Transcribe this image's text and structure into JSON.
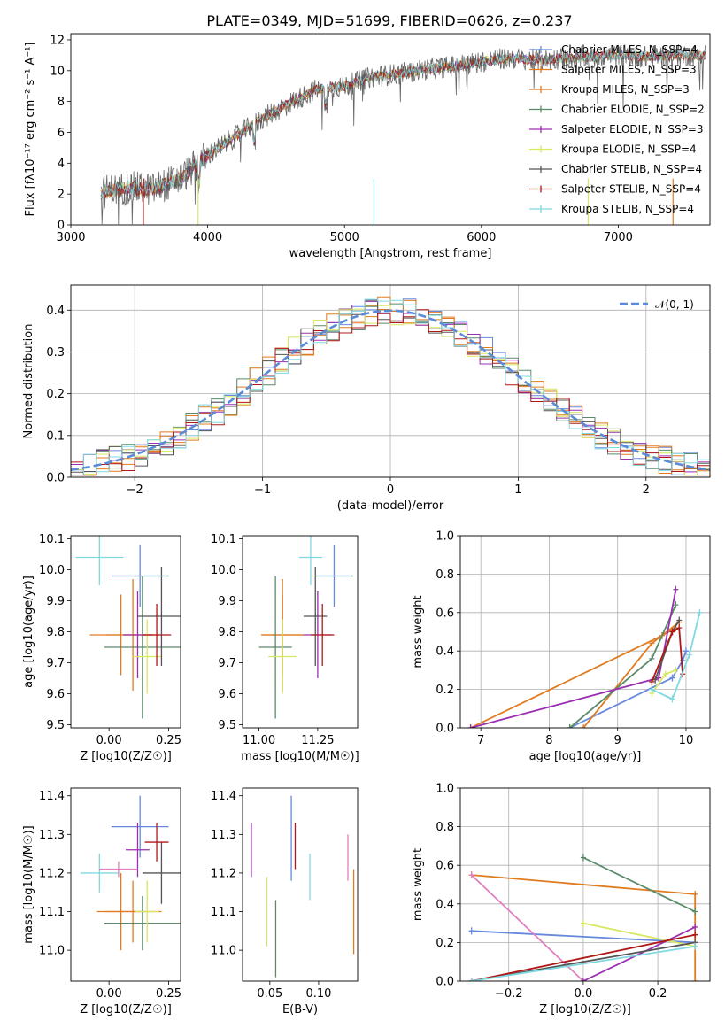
{
  "title": "PLATE=0349, MJD=51699, FIBERID=0626, z=0.237",
  "colors": {
    "Chabrier MILES": "#6688dd",
    "Salpeter MILES": "#e07b20",
    "Kroupa MILES": "#e07b20",
    "Chabrier ELODIE": "#5a8a6a",
    "Salpeter ELODIE": "#9a30b0",
    "Kroupa ELODIE": "#d8e860",
    "Chabrier STELIB": "#555555",
    "Salpeter STELIB": "#b01818",
    "Kroupa STELIB": "#80d8e0"
  },
  "chart_data": [
    {
      "id": "spectrum",
      "type": "line",
      "xlabel": "wavelength [Angstrom, rest frame]",
      "ylabel": "Flux [fλ10⁻¹⁷ erg cm⁻² s⁻¹ A⁻¹]",
      "xlim": [
        3000,
        7670
      ],
      "ylim": [
        0,
        12.4
      ],
      "xticks": [
        "3000",
        "4000",
        "5000",
        "6000",
        "7000"
      ],
      "yticks": [
        "0",
        "2",
        "4",
        "6",
        "8",
        "10",
        "12"
      ],
      "legend_position": "top-right",
      "legend": [
        "Chabrier MILES, N_SSP=4",
        "Salpeter MILES, N_SSP=3",
        "Kroupa MILES, N_SSP=3",
        "Chabrier ELODIE, N_SSP=2",
        "Salpeter ELODIE, N_SSP=3",
        "Kroupa ELODIE, N_SSP=4",
        "Chabrier STELIB, N_SSP=4",
        "Salpeter STELIB, N_SSP=4",
        "Kroupa STELIB, N_SSP=4"
      ],
      "continuum": {
        "x": [
          3220,
          3400,
          3600,
          3800,
          4000,
          4200,
          4400,
          4600,
          4800,
          5000,
          5200,
          5400,
          5600,
          5800,
          6000,
          6200,
          6400,
          6600,
          6800,
          7000,
          7200,
          7400
        ],
        "y": [
          2.1,
          2.4,
          2.3,
          3.0,
          4.5,
          5.7,
          6.9,
          7.9,
          8.8,
          9.0,
          9.6,
          9.8,
          10.1,
          10.3,
          10.6,
          10.8,
          10.7,
          10.8,
          10.9,
          11.0,
          10.9,
          11.0
        ]
      }
    },
    {
      "id": "residuals",
      "type": "bar",
      "xlabel": "(data-model)/error",
      "ylabel": "Normed distribution",
      "xlim": [
        -2.5,
        2.5
      ],
      "ylim": [
        0,
        0.46
      ],
      "xticks": [
        "−2",
        "−1",
        "0",
        "1",
        "2"
      ],
      "yticks": [
        "0.0",
        "0.1",
        "0.2",
        "0.3",
        "0.4"
      ],
      "legend": [
        "𝒩(0, 1)"
      ],
      "legend_position": "top-right",
      "grid": true
    },
    {
      "id": "age-vs-Z",
      "type": "scatter",
      "xlabel": "Z [log10(Z/Z☉)]",
      "ylabel": "age [log10(age/yr)]",
      "xlim": [
        -0.16,
        0.3
      ],
      "ylim": [
        9.49,
        10.11
      ],
      "xticks": [
        "0.00",
        "0.25"
      ],
      "yticks": [
        "9.5",
        "9.6",
        "9.7",
        "9.8",
        "9.9",
        "10.0",
        "10.1"
      ],
      "series": [
        {
          "name": "Chabrier MILES",
          "x": 0.13,
          "y": 9.98,
          "xerr": 0.12,
          "yerr": 0.1
        },
        {
          "name": "Salpeter MILES",
          "x": 0.1,
          "y": 9.79,
          "xerr": 0.11,
          "yerr": 0.18
        },
        {
          "name": "Kroupa MILES",
          "x": 0.05,
          "y": 9.79,
          "xerr": 0.13,
          "yerr": 0.13
        },
        {
          "name": "Chabrier ELODIE",
          "x": 0.14,
          "y": 9.75,
          "xerr": 0.16,
          "yerr": 0.23
        },
        {
          "name": "Salpeter ELODIE",
          "x": 0.12,
          "y": 9.79,
          "xerr": 0.06,
          "yerr": 0.14
        },
        {
          "name": "Kroupa ELODIE",
          "x": 0.16,
          "y": 9.72,
          "xerr": 0.06,
          "yerr": 0.12
        },
        {
          "name": "Chabrier STELIB",
          "x": 0.22,
          "y": 9.85,
          "xerr": 0.1,
          "yerr": 0.16
        },
        {
          "name": "Salpeter STELIB",
          "x": 0.2,
          "y": 9.79,
          "xerr": 0.06,
          "yerr": 0.1
        },
        {
          "name": "Kroupa STELIB",
          "x": -0.04,
          "y": 10.04,
          "xerr": 0.1,
          "yerr": 0.09
        }
      ]
    },
    {
      "id": "age-vs-mass",
      "type": "scatter",
      "xlabel": "mass [log10(M/M☉)]",
      "ylabel": "",
      "xlim": [
        10.93,
        11.42
      ],
      "ylim": [
        9.49,
        10.11
      ],
      "xticks": [
        "11.00",
        "11.25"
      ],
      "yticks": [
        "9.5",
        "9.6",
        "9.7",
        "9.8",
        "9.9",
        "10.0",
        "10.1"
      ],
      "series": [
        {
          "name": "Chabrier MILES",
          "x": 11.32,
          "y": 9.98,
          "xerr": 0.08,
          "yerr": 0.1
        },
        {
          "name": "Salpeter MILES",
          "x": 11.1,
          "y": 9.79,
          "xerr": 0.09,
          "yerr": 0.18
        },
        {
          "name": "Kroupa MILES",
          "x": 11.1,
          "y": 9.79,
          "xerr": 0.09,
          "yerr": 0.13
        },
        {
          "name": "Chabrier ELODIE",
          "x": 11.07,
          "y": 9.75,
          "xerr": 0.07,
          "yerr": 0.23
        },
        {
          "name": "Salpeter ELODIE",
          "x": 11.25,
          "y": 9.79,
          "xerr": 0.06,
          "yerr": 0.14
        },
        {
          "name": "Kroupa ELODIE",
          "x": 11.1,
          "y": 9.72,
          "xerr": 0.06,
          "yerr": 0.12
        },
        {
          "name": "Chabrier STELIB",
          "x": 11.24,
          "y": 9.85,
          "xerr": 0.05,
          "yerr": 0.16
        },
        {
          "name": "Salpeter STELIB",
          "x": 11.27,
          "y": 9.79,
          "xerr": 0.05,
          "yerr": 0.1
        },
        {
          "name": "Kroupa STELIB",
          "x": 11.22,
          "y": 10.04,
          "xerr": 0.05,
          "yerr": 0.09
        }
      ]
    },
    {
      "id": "mass-weight-vs-age",
      "type": "line",
      "xlabel": "age [log10(age/yr)]",
      "ylabel": "mass weight",
      "xlim": [
        6.7,
        10.35
      ],
      "ylim": [
        0,
        1.0
      ],
      "xticks": [
        "7",
        "8",
        "9",
        "10"
      ],
      "yticks": [
        "0.0",
        "0.2",
        "0.4",
        "0.6",
        "0.8",
        "1.0"
      ],
      "grid": true,
      "series": [
        {
          "name": "Chabrier MILES",
          "x": [
            8.3,
            9.8,
            9.95,
            10.0
          ],
          "y": [
            0.0,
            0.26,
            0.35,
            0.4
          ]
        },
        {
          "name": "Salpeter MILES",
          "x": [
            8.5,
            9.5,
            9.9
          ],
          "y": [
            0.0,
            0.44,
            0.55
          ]
        },
        {
          "name": "Kroupa MILES",
          "x": [
            6.85,
            9.65,
            9.85
          ],
          "y": [
            0.0,
            0.48,
            0.52
          ]
        },
        {
          "name": "Chabrier ELODIE",
          "x": [
            8.3,
            9.5,
            9.85
          ],
          "y": [
            0.0,
            0.36,
            0.64
          ]
        },
        {
          "name": "Salpeter ELODIE",
          "x": [
            6.85,
            9.6,
            9.85
          ],
          "y": [
            0.0,
            0.26,
            0.72
          ]
        },
        {
          "name": "Kroupa ELODIE",
          "x": [
            9.5,
            9.7,
            9.85
          ],
          "y": [
            0.18,
            0.28,
            0.3
          ]
        },
        {
          "name": "Chabrier STELIB",
          "x": [
            9.55,
            9.8,
            9.9
          ],
          "y": [
            0.25,
            0.5,
            0.56
          ]
        },
        {
          "name": "Salpeter STELIB",
          "x": [
            9.5,
            9.8,
            9.9,
            9.95
          ],
          "y": [
            0.24,
            0.5,
            0.52,
            0.28
          ]
        },
        {
          "name": "Kroupa STELIB",
          "x": [
            9.5,
            9.8,
            10.05,
            10.2
          ],
          "y": [
            0.2,
            0.15,
            0.38,
            0.6
          ]
        }
      ]
    },
    {
      "id": "mass-vs-Z",
      "type": "scatter",
      "xlabel": "Z [log10(Z/Z☉)]",
      "ylabel": "mass [log10(M/M☉)]",
      "xlim": [
        -0.16,
        0.3
      ],
      "ylim": [
        10.92,
        11.42
      ],
      "xticks": [
        "0.00",
        "0.25"
      ],
      "yticks": [
        "11.0",
        "11.1",
        "11.2",
        "11.3",
        "11.4"
      ],
      "series": [
        {
          "name": "Chabrier MILES",
          "x": 0.13,
          "y": 11.32,
          "xerr": 0.12,
          "yerr": 0.08
        },
        {
          "name": "Salpeter MILES",
          "x": 0.05,
          "y": 11.1,
          "xerr": 0.1,
          "yerr": 0.1
        },
        {
          "name": "Kroupa MILES",
          "x": 0.1,
          "y": 11.1,
          "xerr": 0.12,
          "yerr": 0.08
        },
        {
          "name": "Chabrier ELODIE",
          "x": 0.14,
          "y": 11.07,
          "xerr": 0.16,
          "yerr": 0.07
        },
        {
          "name": "Salpeter ELODIE",
          "x": 0.12,
          "y": 11.26,
          "xerr": 0.05,
          "yerr": 0.07
        },
        {
          "name": "Kroupa ELODIE",
          "x": 0.16,
          "y": 11.1,
          "xerr": 0.05,
          "yerr": 0.08
        },
        {
          "name": "Chabrier STELIB",
          "x": 0.22,
          "y": 11.2,
          "xerr": 0.08,
          "yerr": 0.08
        },
        {
          "name": "Salpeter STELIB",
          "x": 0.2,
          "y": 11.28,
          "xerr": 0.05,
          "yerr": 0.05
        },
        {
          "name": "Kroupa STELIB",
          "x": -0.04,
          "y": 11.2,
          "xerr": 0.08,
          "yerr": 0.05
        },
        {
          "name": "pink",
          "x": 0.04,
          "y": 11.21,
          "xerr": 0.08,
          "yerr": 0.02
        }
      ]
    },
    {
      "id": "mass-vs-EBV",
      "type": "scatter",
      "xlabel": "E(B-V)",
      "ylabel": "",
      "xlim": [
        0.022,
        0.14
      ],
      "ylim": [
        10.92,
        11.42
      ],
      "xticks": [
        "0.05",
        "0.10"
      ],
      "yticks": [
        "11.0",
        "11.1",
        "11.2",
        "11.3",
        "11.4"
      ],
      "series": [
        {
          "name": "Salpeter ELODIE",
          "x": 0.031,
          "y": 11.26,
          "yerr": 0.07
        },
        {
          "name": "Kroupa ELODIE",
          "x": 0.047,
          "y": 11.1,
          "yerr": 0.09
        },
        {
          "name": "Chabrier ELODIE",
          "x": 0.056,
          "y": 11.03,
          "yerr": 0.1
        },
        {
          "name": "Chabrier MILES",
          "x": 0.072,
          "y": 11.29,
          "yerr": 0.11
        },
        {
          "name": "Salpeter STELIB",
          "x": 0.076,
          "y": 11.27,
          "yerr": 0.06
        },
        {
          "name": "Kroupa STELIB",
          "x": 0.091,
          "y": 11.19,
          "yerr": 0.06
        },
        {
          "name": "pink",
          "x": 0.13,
          "y": 11.24,
          "yerr": 0.06
        },
        {
          "name": "Salpeter MILES",
          "x": 0.136,
          "y": 11.1,
          "yerr": 0.11
        }
      ]
    },
    {
      "id": "mass-weight-vs-Z",
      "type": "line",
      "xlabel": "Z [log10(Z/Z☉)]",
      "ylabel": "mass weight",
      "xlim": [
        -0.33,
        0.34
      ],
      "ylim": [
        0,
        1.0
      ],
      "xticks": [
        "−0.2",
        "0.0",
        "0.2"
      ],
      "yticks": [
        "0.0",
        "0.2",
        "0.4",
        "0.6",
        "0.8",
        "1.0"
      ],
      "grid": true,
      "series": [
        {
          "name": "Chabrier MILES",
          "x": [
            -0.3,
            0.3
          ],
          "y": [
            0.26,
            0.2
          ]
        },
        {
          "name": "Salpeter MILES",
          "x": [
            -0.3,
            0.3,
            0.3
          ],
          "y": [
            0.55,
            0.45,
            0.0
          ]
        },
        {
          "name": "pink",
          "x": [
            -0.3,
            0.0
          ],
          "y": [
            0.55,
            0.0
          ]
        },
        {
          "name": "Chabrier ELODIE",
          "x": [
            0.0,
            0.3
          ],
          "y": [
            0.64,
            0.36
          ]
        },
        {
          "name": "Salpeter ELODIE",
          "x": [
            0.0,
            0.3
          ],
          "y": [
            0.0,
            0.28
          ]
        },
        {
          "name": "Kroupa ELODIE",
          "x": [
            0.0,
            0.3
          ],
          "y": [
            0.3,
            0.18
          ]
        },
        {
          "name": "Chabrier STELIB",
          "x": [
            -0.3,
            0.3
          ],
          "y": [
            0.0,
            0.2
          ]
        },
        {
          "name": "Salpeter STELIB",
          "x": [
            -0.3,
            0.3
          ],
          "y": [
            0.0,
            0.24
          ]
        },
        {
          "name": "Kroupa STELIB",
          "x": [
            -0.3,
            0.3
          ],
          "y": [
            0.0,
            0.18
          ]
        }
      ]
    }
  ]
}
